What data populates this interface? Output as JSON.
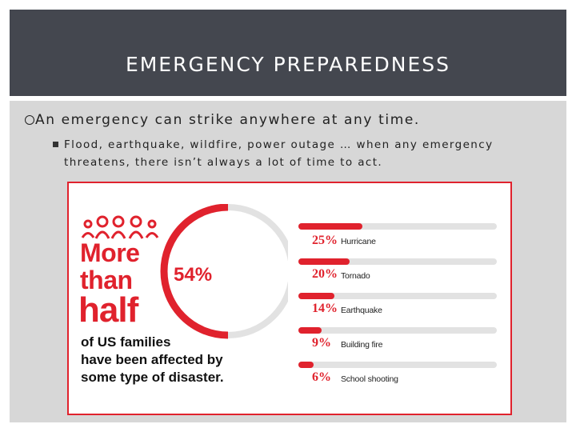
{
  "slide": {
    "title": "EMERGENCY PREPAREDNESS",
    "bullet1": "An emergency can strike anywhere at any time.",
    "bullet2": "Flood, earthquake, wildfire, power outage … when any emergency threatens, there isn’t always a lot of time to act."
  },
  "infographic": {
    "line1": "More",
    "line2": "than",
    "line3": "half",
    "percent": "54%",
    "percent_value": 54,
    "caption": "of US families\nhave been affected by\nsome type of disaster.",
    "accent_color": "#e0222d",
    "track_color": "#e2e2e2",
    "icon": "family-people-icon",
    "bars": [
      {
        "pct": "25%",
        "value": 25,
        "label": "Hurricane"
      },
      {
        "pct": "20%",
        "value": 20,
        "label": "Tornado"
      },
      {
        "pct": "14%",
        "value": 14,
        "label": "Earthquake"
      },
      {
        "pct": "9%",
        "value": 9,
        "label": "Building fire"
      },
      {
        "pct": "6%",
        "value": 6,
        "label": "School shooting"
      }
    ]
  }
}
